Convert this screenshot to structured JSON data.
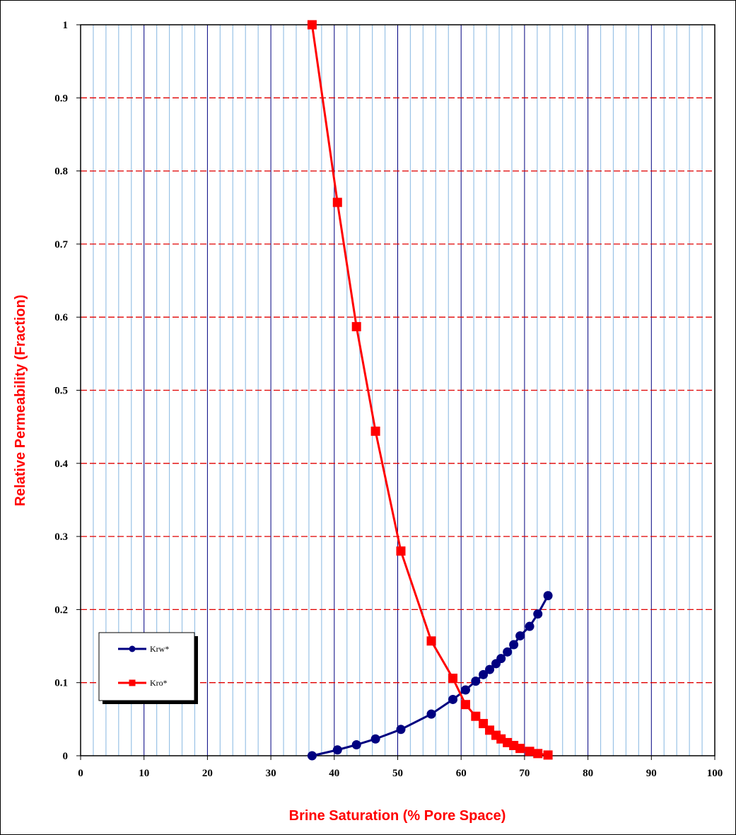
{
  "chart_data": {
    "type": "line",
    "title": "",
    "xlabel": "Brine Saturation (% Pore Space)",
    "ylabel": "Relative Permeability (Fraction)",
    "xlim": [
      0,
      100
    ],
    "ylim": [
      0,
      1
    ],
    "x_major_ticks": [
      0,
      10,
      20,
      30,
      40,
      50,
      60,
      70,
      80,
      90,
      100
    ],
    "y_major_ticks": [
      0,
      0.1,
      0.2,
      0.3,
      0.4,
      0.5,
      0.6,
      0.7,
      0.8,
      0.9,
      1
    ],
    "x_tick_labels": [
      "0",
      "10",
      "20",
      "30",
      "40",
      "50",
      "60",
      "70",
      "80",
      "90",
      "100"
    ],
    "y_tick_labels": [
      "0",
      "0.1",
      "0.2",
      "0.3",
      "0.4",
      "0.5",
      "0.6",
      "0.7",
      "0.8",
      "0.9",
      "1"
    ],
    "x_minor_step": 2,
    "grid": true,
    "legend_position": "bottom-left",
    "series": [
      {
        "name": "Krw*",
        "color": "#000080",
        "marker": "circle",
        "x": [
          36.5,
          40.5,
          43.5,
          46.5,
          50.5,
          55.3,
          58.7,
          60.7,
          62.3,
          63.5,
          64.5,
          65.5,
          66.3,
          67.3,
          68.3,
          69.3,
          70.8,
          72.1,
          73.7
        ],
        "y": [
          0.0,
          0.008,
          0.015,
          0.023,
          0.036,
          0.057,
          0.077,
          0.09,
          0.102,
          0.111,
          0.118,
          0.126,
          0.133,
          0.142,
          0.152,
          0.164,
          0.177,
          0.194,
          0.219
        ]
      },
      {
        "name": "Kro*",
        "color": "#ff0000",
        "marker": "square",
        "x": [
          36.5,
          40.5,
          43.5,
          46.5,
          50.5,
          55.3,
          58.7,
          60.7,
          62.3,
          63.5,
          64.5,
          65.5,
          66.3,
          67.3,
          68.3,
          69.3,
          70.8,
          72.1,
          73.7
        ],
        "y": [
          1.0,
          0.757,
          0.587,
          0.444,
          0.28,
          0.157,
          0.106,
          0.07,
          0.054,
          0.044,
          0.035,
          0.028,
          0.023,
          0.018,
          0.014,
          0.01,
          0.006,
          0.003,
          0.001
        ]
      }
    ]
  }
}
